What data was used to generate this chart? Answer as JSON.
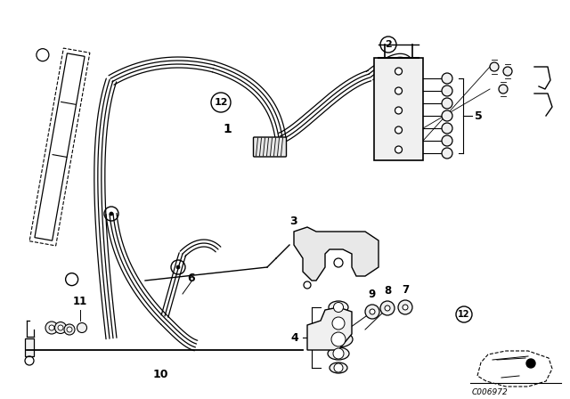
{
  "bg_color": "#ffffff",
  "line_color": "#000000",
  "label_color": "#000000",
  "ref_code": "C006972"
}
